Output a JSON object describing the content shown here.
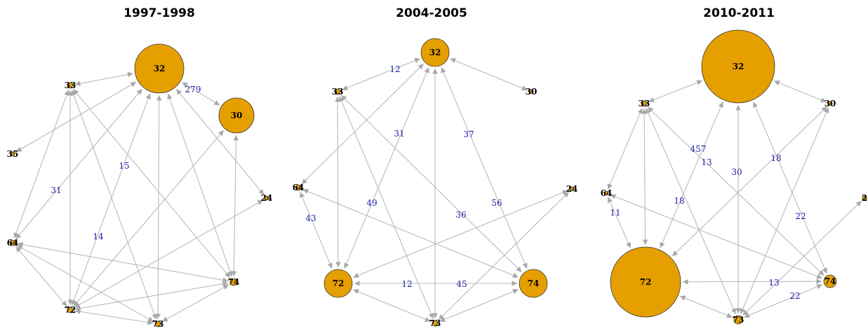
{
  "panels": [
    {
      "title": "1997-1998",
      "nodes": [
        {
          "label": "32"
        },
        {
          "label": "30"
        },
        {
          "label": "33"
        },
        {
          "label": "35"
        },
        {
          "label": "24"
        },
        {
          "label": "64"
        },
        {
          "label": "74"
        },
        {
          "label": "72"
        },
        {
          "label": "73"
        }
      ],
      "edge_labels": [
        "279",
        "15",
        "31",
        "14"
      ]
    },
    {
      "title": "2004-2005",
      "nodes": [
        {
          "label": "32"
        },
        {
          "label": "30"
        },
        {
          "label": "33"
        },
        {
          "label": "64"
        },
        {
          "label": "24"
        },
        {
          "label": "72"
        },
        {
          "label": "74"
        },
        {
          "label": "73"
        }
      ],
      "edge_labels": [
        "12",
        "31",
        "37",
        "49",
        "36",
        "56",
        "43",
        "12",
        "45"
      ]
    },
    {
      "title": "2010-2011",
      "nodes": [
        {
          "label": "32"
        },
        {
          "label": "30"
        },
        {
          "label": "33"
        },
        {
          "label": "64"
        },
        {
          "label": "2"
        },
        {
          "label": "72"
        },
        {
          "label": "74"
        },
        {
          "label": "73"
        }
      ],
      "edge_labels": [
        "457",
        "13",
        "30",
        "18",
        "11",
        "18",
        "22",
        "13",
        "22"
      ]
    }
  ]
}
